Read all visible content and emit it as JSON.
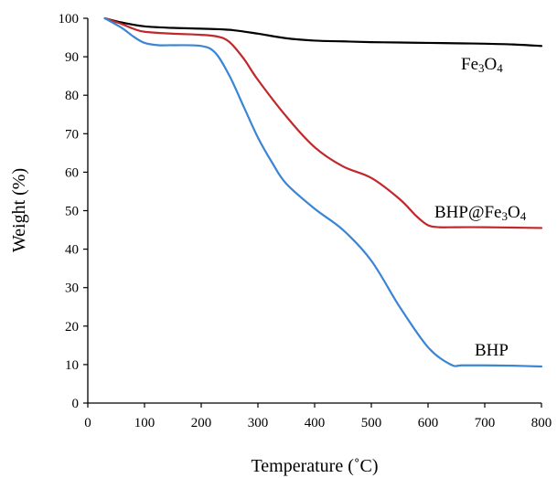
{
  "chart_data": {
    "type": "line",
    "title": "",
    "xlabel": "Temperature (˚C)",
    "ylabel": "Weight (%)",
    "xlim": [
      0,
      800
    ],
    "ylim": [
      0,
      100
    ],
    "xticks": [
      0,
      100,
      200,
      300,
      400,
      500,
      600,
      700,
      800
    ],
    "yticks": [
      0,
      10,
      20,
      30,
      40,
      50,
      60,
      70,
      80,
      90,
      100
    ],
    "grid": false,
    "legend": "none",
    "series": [
      {
        "name": "Fe3O4",
        "label_main": "Fe",
        "label_sub1": "3",
        "label_mid": "O",
        "label_sub2": "4",
        "color": "#000000",
        "x": [
          30,
          60,
          100,
          150,
          200,
          250,
          300,
          350,
          400,
          450,
          500,
          550,
          600,
          650,
          700,
          750,
          800
        ],
        "y": [
          100,
          98.9,
          97.9,
          97.5,
          97.3,
          97.0,
          96.0,
          94.8,
          94.2,
          94.0,
          93.8,
          93.7,
          93.6,
          93.5,
          93.4,
          93.2,
          92.8
        ]
      },
      {
        "name": "BHP@Fe3O4",
        "label_main": "BHP@Fe",
        "label_sub1": "3",
        "label_mid": "O",
        "label_sub2": "4",
        "color": "#c0282b",
        "x": [
          30,
          60,
          80,
          100,
          150,
          200,
          230,
          250,
          275,
          300,
          350,
          400,
          450,
          500,
          550,
          580,
          600,
          620,
          650,
          700,
          750,
          800
        ],
        "y": [
          100,
          98.5,
          97.3,
          96.5,
          96.0,
          95.7,
          95.2,
          93.8,
          89.5,
          84.0,
          74.5,
          66.5,
          61.5,
          58.5,
          53.0,
          48.5,
          46.2,
          45.7,
          45.7,
          45.7,
          45.6,
          45.5
        ]
      },
      {
        "name": "BHP",
        "label_main": "BHP",
        "label_sub1": "",
        "label_mid": "",
        "label_sub2": "",
        "color": "#3a86d4",
        "x": [
          30,
          60,
          80,
          100,
          125,
          150,
          200,
          225,
          250,
          275,
          300,
          325,
          350,
          400,
          450,
          500,
          550,
          600,
          640,
          660,
          700,
          750,
          800
        ],
        "y": [
          100,
          97.5,
          95.3,
          93.6,
          93.0,
          93.0,
          92.8,
          91.0,
          85.0,
          77.0,
          69.0,
          62.5,
          57.0,
          50.5,
          45.0,
          37.0,
          25.0,
          14.5,
          10.0,
          9.8,
          9.8,
          9.7,
          9.5
        ]
      }
    ]
  }
}
